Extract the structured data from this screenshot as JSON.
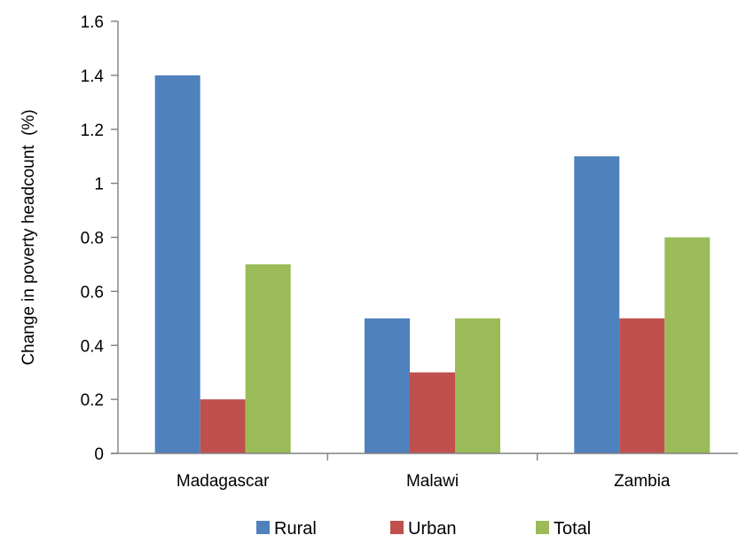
{
  "chart_data": {
    "type": "bar",
    "categories": [
      "Madagascar",
      "Malawi",
      "Zambia"
    ],
    "series": [
      {
        "name": "Rural",
        "values": [
          1.4,
          0.5,
          1.1
        ],
        "color": "#4F81BD"
      },
      {
        "name": "Urban",
        "values": [
          0.2,
          0.3,
          0.5
        ],
        "color": "#C0504D"
      },
      {
        "name": "Total",
        "values": [
          0.7,
          0.5,
          0.8
        ],
        "color": "#9BBB59"
      }
    ],
    "title": "",
    "xlabel": "",
    "ylabel": "Change in poverty headcount  (%)",
    "ylim": [
      0,
      1.6
    ],
    "yticks": [
      "0",
      "0.2",
      "0.4",
      "0.6",
      "0.8",
      "1",
      "1.2",
      "1.4",
      "1.6"
    ],
    "grid": false,
    "legend_position": "bottom"
  }
}
